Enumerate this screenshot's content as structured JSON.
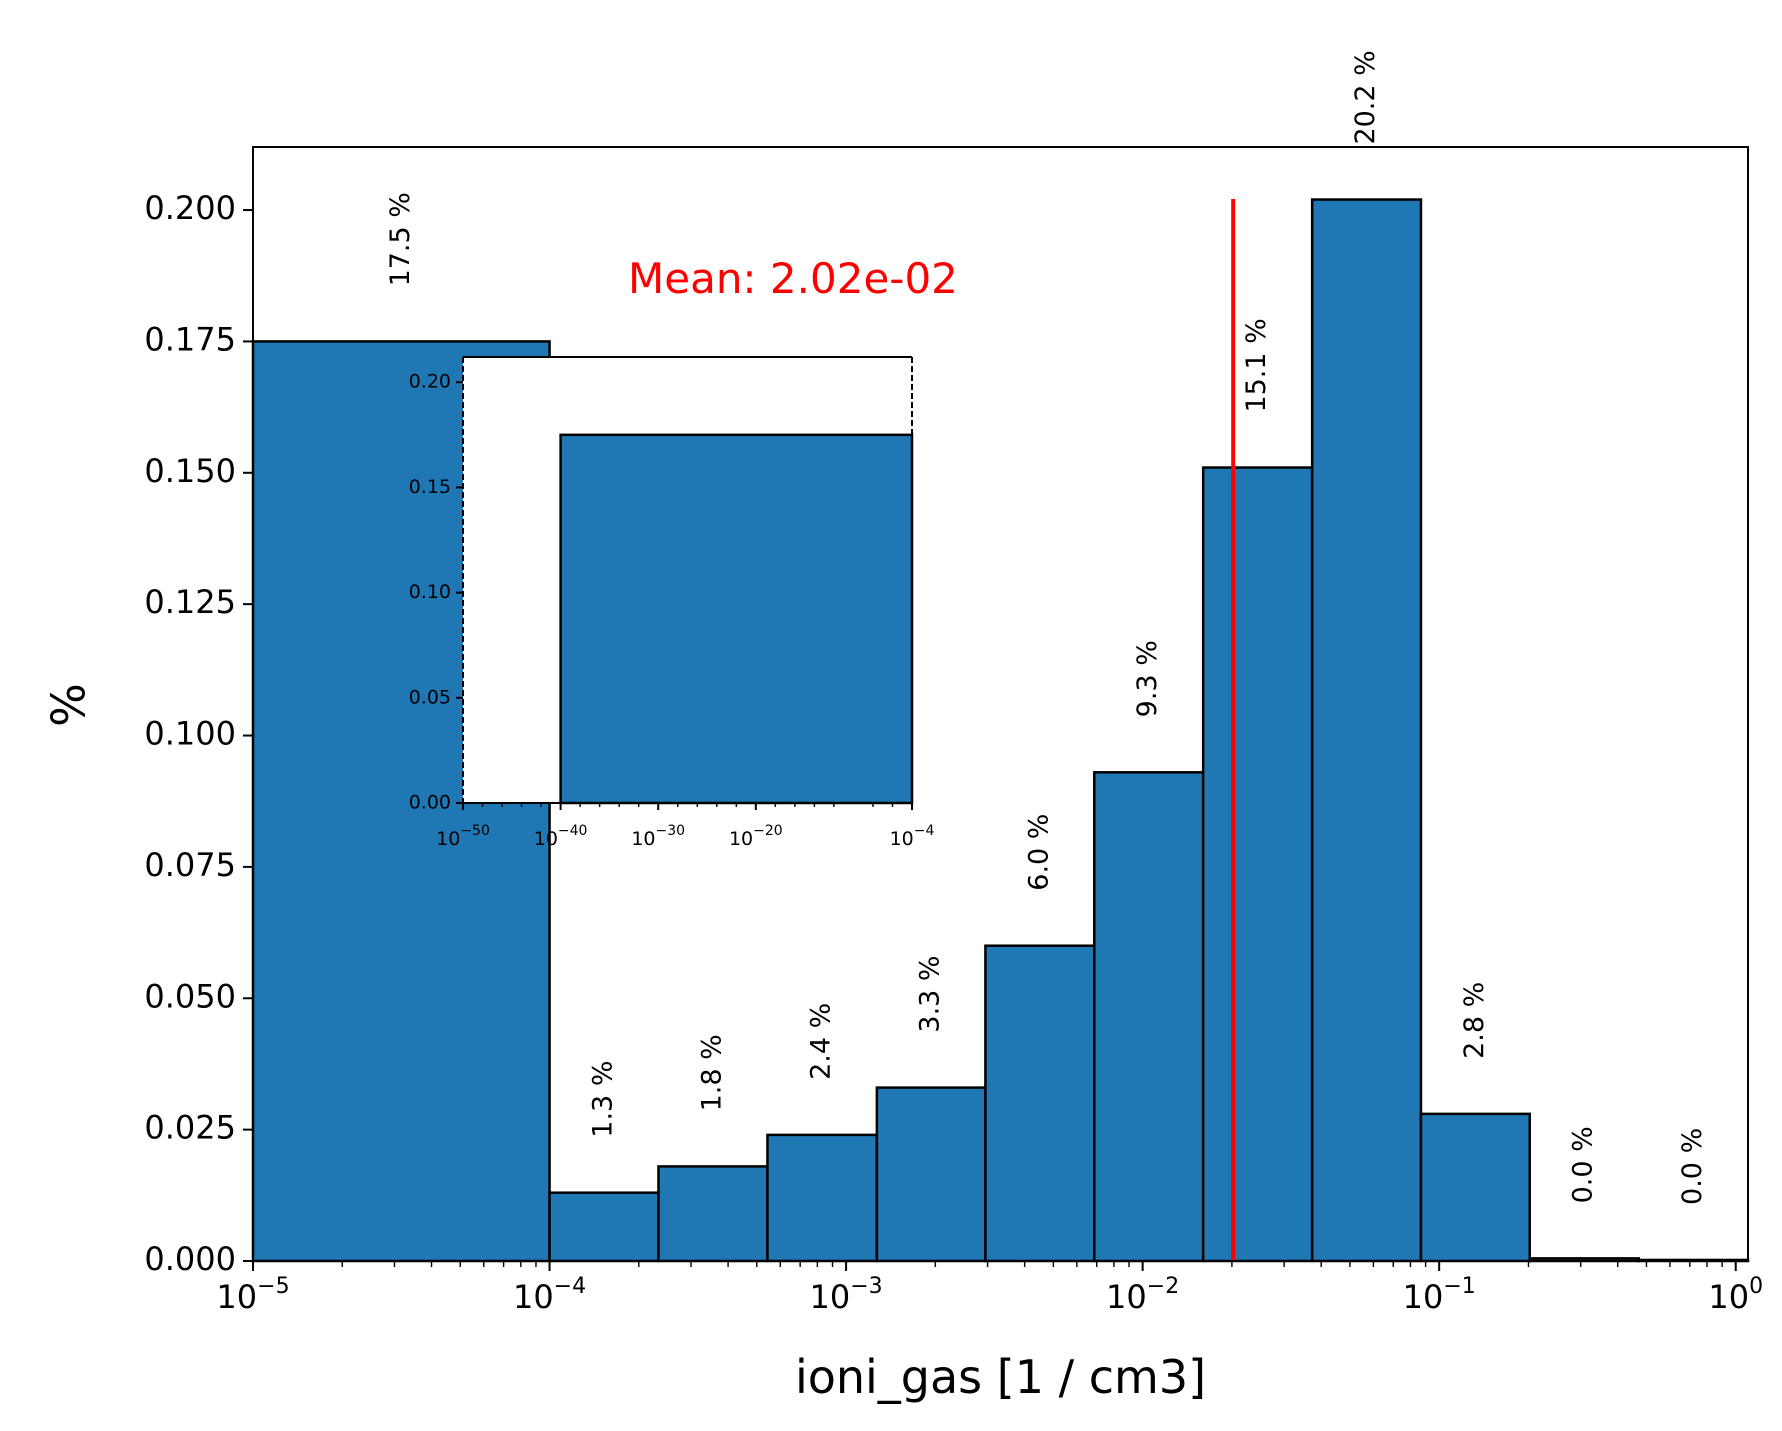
{
  "chart_data": [
    {
      "type": "bar",
      "xscale": "log",
      "xlabel": "ioni_gas [1 / cm3]",
      "ylabel": "%",
      "xlim": [
        1e-05,
        1.1
      ],
      "ylim": [
        0,
        0.212
      ],
      "x_ticks": [
        {
          "base": "10",
          "exp": "−5",
          "value": 1e-05
        },
        {
          "base": "10",
          "exp": "−4",
          "value": 0.0001
        },
        {
          "base": "10",
          "exp": "−3",
          "value": 0.001
        },
        {
          "base": "10",
          "exp": "−2",
          "value": 0.01
        },
        {
          "base": "10",
          "exp": "−1",
          "value": 0.1
        },
        {
          "base": "10",
          "exp": "0",
          "value": 1
        }
      ],
      "y_ticks": [
        "0.000",
        "0.025",
        "0.050",
        "0.075",
        "0.100",
        "0.125",
        "0.150",
        "0.175",
        "0.200"
      ],
      "bins": [
        {
          "x0": 1e-05,
          "x1": 0.0001,
          "value": 0.175,
          "label": "17.5 %"
        },
        {
          "x0": 0.0001,
          "x1": 0.000233,
          "value": 0.013,
          "label": "1.3 %"
        },
        {
          "x0": 0.000233,
          "x1": 0.000543,
          "value": 0.018,
          "label": "1.8 %"
        },
        {
          "x0": 0.000543,
          "x1": 0.00127,
          "value": 0.024,
          "label": "2.4 %"
        },
        {
          "x0": 0.00127,
          "x1": 0.00295,
          "value": 0.033,
          "label": "3.3 %"
        },
        {
          "x0": 0.00295,
          "x1": 0.00687,
          "value": 0.06,
          "label": "6.0 %"
        },
        {
          "x0": 0.00687,
          "x1": 0.016,
          "value": 0.093,
          "label": "9.3 %"
        },
        {
          "x0": 0.016,
          "x1": 0.0373,
          "value": 0.151,
          "label": "15.1 %"
        },
        {
          "x0": 0.0373,
          "x1": 0.0868,
          "value": 0.202,
          "label": "20.2 %"
        },
        {
          "x0": 0.0868,
          "x1": 0.202,
          "value": 0.028,
          "label": "2.8 %"
        },
        {
          "x0": 0.202,
          "x1": 0.471,
          "value": 0.0005,
          "label": "0.0 %"
        },
        {
          "x0": 0.471,
          "x1": 1.1,
          "value": 0.0002,
          "label": "0.0 %"
        }
      ],
      "mean": {
        "value": 0.0202,
        "label": "Mean: 2.02e-02",
        "color": "#ff0000"
      },
      "bar_color": "#1f77b4"
    },
    {
      "type": "bar",
      "role": "inset",
      "xscale": "log",
      "xlim_exp": [
        -50,
        -4
      ],
      "ylim": [
        0,
        0.212
      ],
      "x_ticks": [
        {
          "base": "10",
          "exp": "−50",
          "exp_value": -50
        },
        {
          "base": "10",
          "exp": "−40",
          "exp_value": -40
        },
        {
          "base": "10",
          "exp": "−30",
          "exp_value": -30
        },
        {
          "base": "10",
          "exp": "−20",
          "exp_value": -20
        },
        {
          "base": "10",
          "exp": "−4",
          "exp_value": -4
        }
      ],
      "y_ticks": [
        "0.00",
        "0.05",
        "0.10",
        "0.15",
        "0.20"
      ],
      "bins": [
        {
          "x0_exp": -40,
          "x1_exp": -4,
          "value": 0.175
        }
      ]
    }
  ]
}
